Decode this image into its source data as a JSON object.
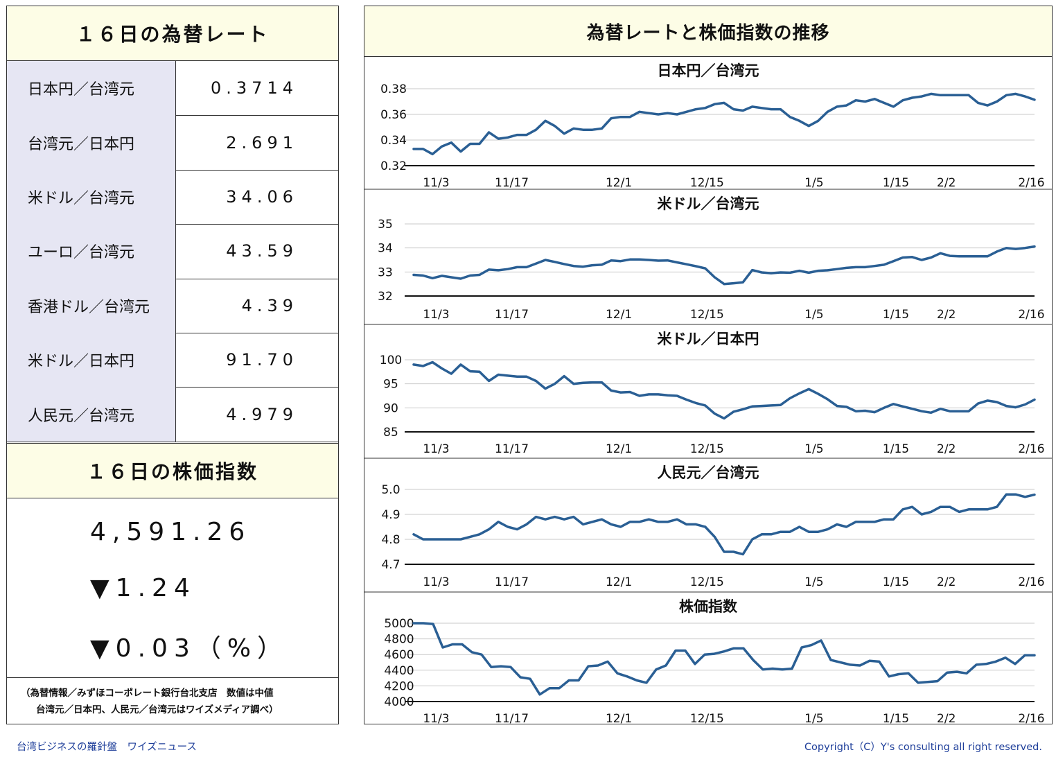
{
  "left": {
    "rate_title": "１６日の為替レート",
    "rates": [
      {
        "label": "日本円／台湾元",
        "value": "0.3714"
      },
      {
        "label": "台湾元／日本円",
        "value": "2.691"
      },
      {
        "label": "米ドル／台湾元",
        "value": "34.06"
      },
      {
        "label": "ユーロ／台湾元",
        "value": "43.59"
      },
      {
        "label": "香港ドル／台湾元",
        "value": "4.39"
      },
      {
        "label": "米ドル／日本円",
        "value": "91.70"
      },
      {
        "label": "人民元／台湾元",
        "value": "4.979"
      }
    ],
    "stock_title": "１６日の株価指数",
    "stock_value": "4,591.26",
    "stock_change": "▼1.24",
    "stock_pct": "▼0.03（%）",
    "source_line1": "（為替情報／みずほコーポレート銀行台北支店　数値は中値",
    "source_line2": "台湾元／日本円、人民元／台湾元はワイズメディア調べ）"
  },
  "right": {
    "title": "為替レートと株価指数の推移"
  },
  "footer": {
    "left_text": "台湾ビジネスの羅針盤　ワイズニュース",
    "right_text": "Copyright（C）Y's consulting all right reserved."
  },
  "colors": {
    "line": "#2a5f94",
    "header_band": "#fdfde6",
    "label_cell": "#e6e6f3",
    "footer_text": "#1f3f9a"
  },
  "chart_data": [
    {
      "type": "line",
      "title": "日本円／台湾元",
      "x_ticks": [
        "11/3",
        "11/17",
        "12/1",
        "12/15",
        "1/5",
        "1/15",
        "2/2",
        "2/16"
      ],
      "ylim": [
        0.32,
        0.38
      ],
      "y_ticks": [
        0.32,
        0.34,
        0.36,
        0.38
      ],
      "y_tick_labels": [
        "0.32",
        "0.34",
        "0.36",
        "0.38"
      ],
      "values": [
        0.333,
        0.333,
        0.329,
        0.335,
        0.338,
        0.331,
        0.337,
        0.337,
        0.346,
        0.341,
        0.342,
        0.344,
        0.344,
        0.348,
        0.355,
        0.351,
        0.345,
        0.349,
        0.348,
        0.348,
        0.349,
        0.357,
        0.358,
        0.358,
        0.362,
        0.361,
        0.36,
        0.361,
        0.36,
        0.362,
        0.364,
        0.365,
        0.368,
        0.369,
        0.364,
        0.363,
        0.366,
        0.365,
        0.364,
        0.364,
        0.358,
        0.355,
        0.351,
        0.355,
        0.362,
        0.366,
        0.367,
        0.371,
        0.37,
        0.372,
        0.369,
        0.366,
        0.371,
        0.373,
        0.374,
        0.376,
        0.375,
        0.375,
        0.375,
        0.375,
        0.369,
        0.367,
        0.37,
        0.375,
        0.376,
        0.374,
        0.3714
      ]
    },
    {
      "type": "line",
      "title": "米ドル／台湾元",
      "x_ticks": [
        "11/3",
        "11/17",
        "12/1",
        "12/15",
        "1/5",
        "1/15",
        "2/2",
        "2/16"
      ],
      "ylim": [
        32,
        35
      ],
      "y_ticks": [
        32,
        33,
        34,
        35
      ],
      "y_tick_labels": [
        "32",
        "33",
        "34",
        "35"
      ],
      "values": [
        32.88,
        32.85,
        32.74,
        32.84,
        32.78,
        32.72,
        32.85,
        32.88,
        33.1,
        33.07,
        33.12,
        33.2,
        33.2,
        33.35,
        33.5,
        33.42,
        33.33,
        33.25,
        33.22,
        33.28,
        33.3,
        33.48,
        33.45,
        33.52,
        33.52,
        33.5,
        33.47,
        33.48,
        33.4,
        33.32,
        33.24,
        33.15,
        32.78,
        32.5,
        32.53,
        32.57,
        33.08,
        32.98,
        32.95,
        32.98,
        32.97,
        33.05,
        32.97,
        33.05,
        33.07,
        33.12,
        33.17,
        33.2,
        33.2,
        33.25,
        33.3,
        33.45,
        33.6,
        33.62,
        33.5,
        33.6,
        33.78,
        33.67,
        33.65,
        33.65,
        33.65,
        33.65,
        33.85,
        34.0,
        33.96,
        34.0,
        34.06
      ]
    },
    {
      "type": "line",
      "title": "米ドル／日本円",
      "x_ticks": [
        "11/3",
        "11/17",
        "12/1",
        "12/15",
        "1/5",
        "1/15",
        "2/2",
        "2/16"
      ],
      "ylim": [
        85,
        100
      ],
      "y_ticks": [
        85,
        90,
        95,
        100
      ],
      "y_tick_labels": [
        "85",
        "90",
        "95",
        "100"
      ],
      "values": [
        99.0,
        98.7,
        99.5,
        98.2,
        97.1,
        99.0,
        97.6,
        97.5,
        95.6,
        96.9,
        96.7,
        96.5,
        96.5,
        95.6,
        94.0,
        95.0,
        96.6,
        95.0,
        95.2,
        95.3,
        95.3,
        93.6,
        93.2,
        93.3,
        92.5,
        92.8,
        92.8,
        92.6,
        92.5,
        91.7,
        91.0,
        90.5,
        88.8,
        87.8,
        89.2,
        89.7,
        90.3,
        90.4,
        90.5,
        90.6,
        92.0,
        93.0,
        93.9,
        92.9,
        91.8,
        90.4,
        90.2,
        89.3,
        89.4,
        89.1,
        90.0,
        90.8,
        90.3,
        89.8,
        89.3,
        89.0,
        89.8,
        89.3,
        89.3,
        89.3,
        90.9,
        91.5,
        91.2,
        90.4,
        90.1,
        90.7,
        91.7
      ]
    },
    {
      "type": "line",
      "title": "人民元／台湾元",
      "x_ticks": [
        "11/3",
        "11/17",
        "12/1",
        "12/15",
        "1/5",
        "1/15",
        "2/2",
        "2/16"
      ],
      "ylim": [
        4.7,
        5.0
      ],
      "y_ticks": [
        4.7,
        4.8,
        4.9,
        5.0
      ],
      "y_tick_labels": [
        "4.7",
        "4.8",
        "4.9",
        "5.0"
      ],
      "values": [
        4.82,
        4.8,
        4.8,
        4.8,
        4.8,
        4.8,
        4.81,
        4.82,
        4.84,
        4.87,
        4.85,
        4.84,
        4.86,
        4.89,
        4.88,
        4.89,
        4.88,
        4.89,
        4.86,
        4.87,
        4.88,
        4.86,
        4.85,
        4.87,
        4.87,
        4.88,
        4.87,
        4.87,
        4.88,
        4.86,
        4.86,
        4.85,
        4.81,
        4.75,
        4.75,
        4.74,
        4.8,
        4.82,
        4.82,
        4.83,
        4.83,
        4.85,
        4.83,
        4.83,
        4.84,
        4.86,
        4.85,
        4.87,
        4.87,
        4.87,
        4.88,
        4.88,
        4.92,
        4.93,
        4.9,
        4.91,
        4.93,
        4.93,
        4.91,
        4.92,
        4.92,
        4.92,
        4.93,
        4.98,
        4.98,
        4.97,
        4.979
      ]
    },
    {
      "type": "line",
      "title": "株価指数",
      "x_ticks": [
        "11/3",
        "11/17",
        "12/1",
        "12/15",
        "1/5",
        "1/15",
        "2/2",
        "2/16"
      ],
      "ylim": [
        4000,
        5000
      ],
      "y_ticks": [
        4000,
        4200,
        4400,
        4600,
        4800,
        5000
      ],
      "y_tick_labels": [
        "4000",
        "4200",
        "4400",
        "4600",
        "4800",
        "5000"
      ],
      "values": [
        5000,
        5000,
        4990,
        4690,
        4730,
        4730,
        4630,
        4600,
        4440,
        4450,
        4440,
        4310,
        4290,
        4090,
        4170,
        4170,
        4270,
        4270,
        4450,
        4460,
        4510,
        4360,
        4320,
        4270,
        4240,
        4410,
        4460,
        4650,
        4650,
        4480,
        4600,
        4610,
        4640,
        4680,
        4680,
        4530,
        4410,
        4420,
        4410,
        4420,
        4690,
        4720,
        4780,
        4530,
        4500,
        4470,
        4460,
        4520,
        4510,
        4320,
        4350,
        4360,
        4240,
        4250,
        4260,
        4370,
        4380,
        4360,
        4470,
        4480,
        4510,
        4560,
        4480,
        4590,
        4591.26
      ]
    }
  ]
}
